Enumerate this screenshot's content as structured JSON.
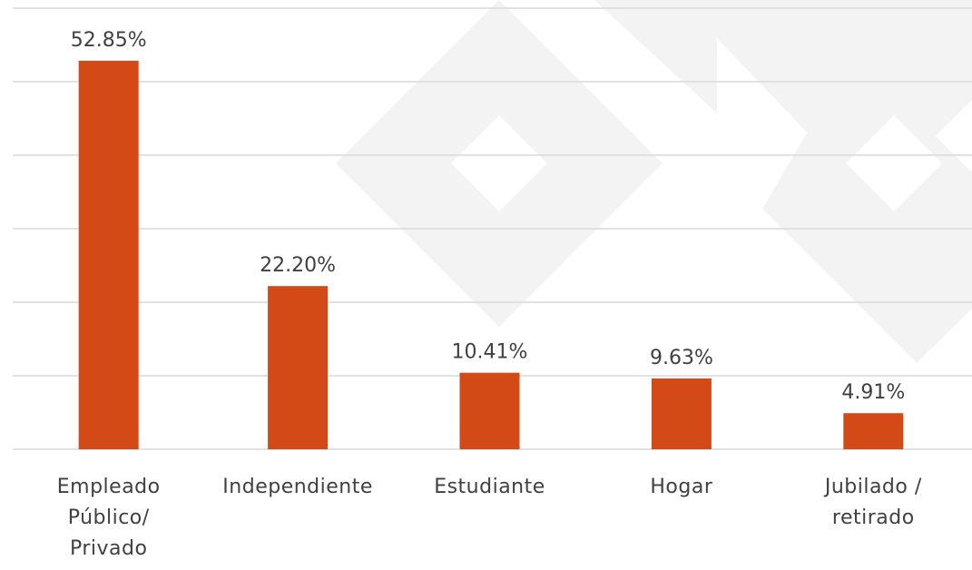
{
  "chart_data": {
    "type": "bar",
    "categories": [
      "Empleado Público/ Privado",
      "Independiente",
      "Estudiante",
      "Hogar",
      "Jubilado / retirado"
    ],
    "values": [
      52.85,
      22.2,
      10.41,
      9.63,
      4.91
    ],
    "value_labels": [
      "52.85%",
      "22.20%",
      "10.41%",
      "9.63%",
      "4.91%"
    ],
    "color": "#d34a17",
    "ylim": [
      0,
      60
    ],
    "yticks": [
      0,
      10,
      20,
      30,
      40,
      50,
      60
    ],
    "grid": true
  }
}
